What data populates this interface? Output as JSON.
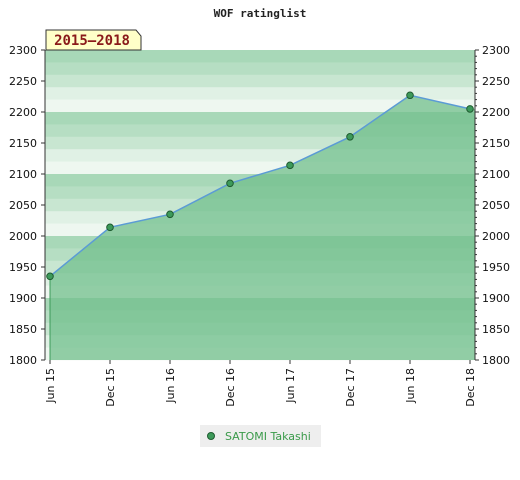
{
  "chart_data": {
    "type": "area",
    "title": "WOF ratinglist",
    "period_label": "2015–2018",
    "x": [
      "Jun 15",
      "Dec 15",
      "Jun 16",
      "Dec 16",
      "Jun 17",
      "Dec 17",
      "Jun 18",
      "Dec 18"
    ],
    "ylim": [
      1800,
      2300
    ],
    "yticks": [
      1800,
      1850,
      1900,
      1950,
      2000,
      2050,
      2100,
      2150,
      2200,
      2250,
      2300
    ],
    "series": [
      {
        "name": "SATOMI Takashi",
        "values": [
          1935,
          2014,
          2035,
          2085,
          2114,
          2160,
          2227,
          2205
        ]
      }
    ],
    "grid": true,
    "legend": "bottom"
  },
  "colors": {
    "line": "#5b9bd5",
    "marker": "#3d9a5a",
    "area": "#72bf8c",
    "band_dark": "#a8d8b8",
    "band_light": "#eef7f0"
  }
}
